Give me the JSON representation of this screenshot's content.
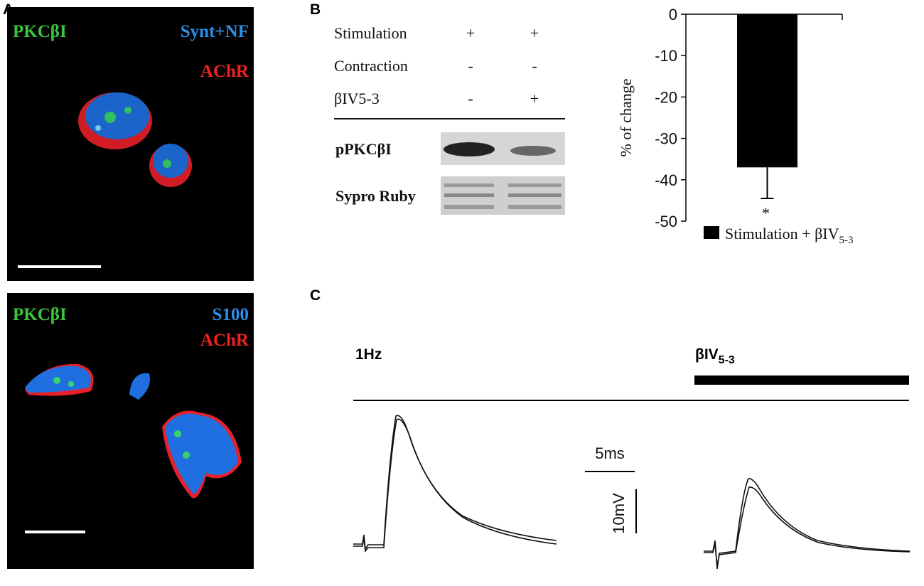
{
  "panel_a": {
    "label": "A",
    "images": [
      {
        "labels": [
          "PKCβI",
          "Synt+NF",
          "AChR"
        ]
      },
      {
        "labels": [
          "PKCβI",
          "S100",
          "AChR"
        ]
      }
    ]
  },
  "panel_b": {
    "label": "B",
    "table": {
      "rows": [
        [
          "Stimulation",
          "+",
          "+"
        ],
        [
          "Contraction",
          "-",
          "-"
        ],
        [
          "βIV5-3",
          "-",
          "+"
        ]
      ]
    },
    "blot_labels": [
      "pPKCβI",
      "Sypro Ruby"
    ]
  },
  "chart_data": {
    "type": "bar",
    "y_label": "% of change",
    "ylim": [
      -50,
      0
    ],
    "yticks": [
      0,
      -10,
      -20,
      -30,
      -40,
      -50
    ],
    "series": [
      {
        "name": "Stimulation + βIV",
        "name_subscript": "5-3",
        "color": "#000000",
        "values": [
          -37
        ],
        "errors": [
          7.5
        ]
      }
    ],
    "annotation": "*"
  },
  "panel_c": {
    "label": "C",
    "left_label": "1Hz",
    "right_label": "βIV",
    "right_label_subscript": "5-3",
    "time_scale": "5ms",
    "voltage_scale": "10mV"
  }
}
